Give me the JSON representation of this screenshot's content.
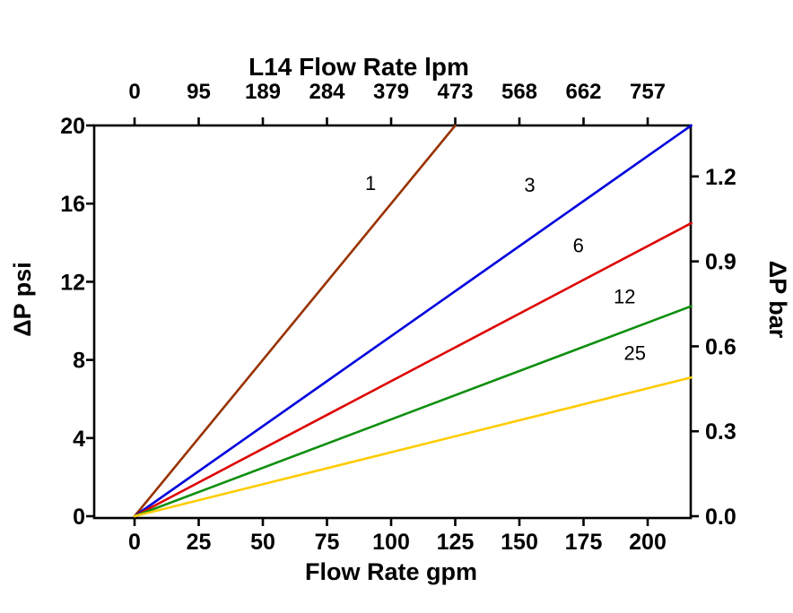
{
  "chart_data": {
    "type": "line",
    "title": "L14 Flow Rate lpm",
    "top_axis": {
      "title": "L14 Flow Rate lpm",
      "tick_labels": [
        "0",
        "95",
        "189",
        "284",
        "379",
        "473",
        "568",
        "662",
        "757"
      ]
    },
    "bottom_axis": {
      "title": "Flow Rate gpm",
      "ticks": [
        0,
        25,
        50,
        75,
        100,
        125,
        150,
        175,
        200
      ],
      "lim": [
        0,
        200
      ]
    },
    "left_axis": {
      "title": "ΔP psi",
      "ticks": [
        0,
        4,
        8,
        12,
        16,
        20
      ],
      "lim": [
        0,
        20
      ]
    },
    "right_axis": {
      "title": "ΔP bar",
      "tick_labels": [
        "0.0",
        "0.3",
        "0.6",
        "0.9",
        "1.2"
      ],
      "tick_values": [
        0,
        0.3,
        0.6,
        0.9,
        1.2
      ],
      "lim": [
        0,
        1.38
      ]
    },
    "grid": false,
    "legend": "inline-labels",
    "series": [
      {
        "label": "1",
        "color": "#993300",
        "points": [
          [
            0,
            0
          ],
          [
            125,
            20
          ]
        ],
        "label_pos": [
          92,
          16.7
        ]
      },
      {
        "label": "3",
        "color": "#0000dd",
        "points": [
          [
            0,
            0
          ],
          [
            217,
            20
          ]
        ],
        "label_pos": [
          154,
          16.6
        ]
      },
      {
        "label": "6",
        "color": "#dd0000",
        "points": [
          [
            0,
            0
          ],
          [
            217,
            15
          ]
        ],
        "label_pos": [
          173,
          13.5
        ]
      },
      {
        "label": "12",
        "color": "#0f8f0f",
        "points": [
          [
            0,
            0
          ],
          [
            217,
            10.75
          ]
        ],
        "label_pos": [
          191,
          10.9
        ]
      },
      {
        "label": "25",
        "color": "#ffcc00",
        "points": [
          [
            0,
            0
          ],
          [
            217,
            7.1
          ]
        ],
        "label_pos": [
          195,
          8.0
        ]
      }
    ]
  }
}
